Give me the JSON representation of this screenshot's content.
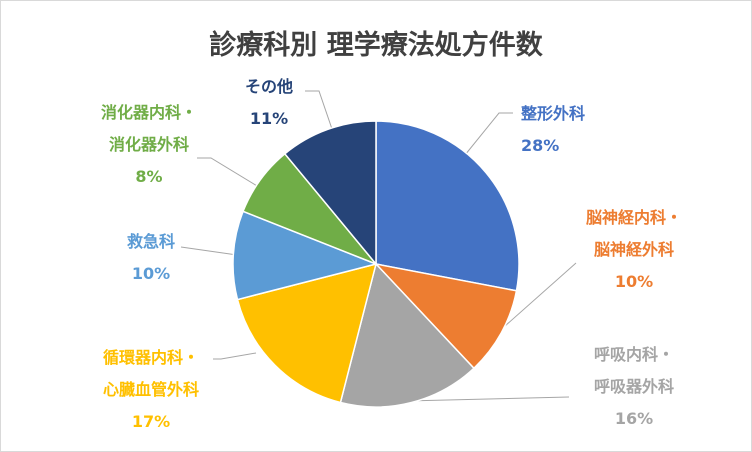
{
  "chart_data": {
    "type": "pie",
    "title": "診療科別 理学療法処方件数",
    "slices": [
      {
        "lines": [
          "整形外科"
        ],
        "pct_label": "28%",
        "value": 28,
        "color": "#4472C4"
      },
      {
        "lines": [
          "脳神経内科・",
          "脳神経外科"
        ],
        "pct_label": "10%",
        "value": 10,
        "color": "#ED7D31"
      },
      {
        "lines": [
          "呼吸内科・",
          "呼吸器外科"
        ],
        "pct_label": "16%",
        "value": 16,
        "color": "#A5A5A5"
      },
      {
        "lines": [
          "循環器内科・",
          "心臓血管外科"
        ],
        "pct_label": "17%",
        "value": 17,
        "color": "#FFC000"
      },
      {
        "lines": [
          "救急科"
        ],
        "pct_label": "10%",
        "value": 10,
        "color": "#5B9BD5"
      },
      {
        "lines": [
          "消化器内科・",
          "消化器外科"
        ],
        "pct_label": "8%",
        "value": 8,
        "color": "#70AD47"
      },
      {
        "lines": [
          "その他"
        ],
        "pct_label": "11%",
        "value": 11,
        "color": "#264478"
      }
    ],
    "leader_color": "#A6A6A6",
    "start_angle": "12 o'clock",
    "direction": "clockwise",
    "legend": "none"
  }
}
